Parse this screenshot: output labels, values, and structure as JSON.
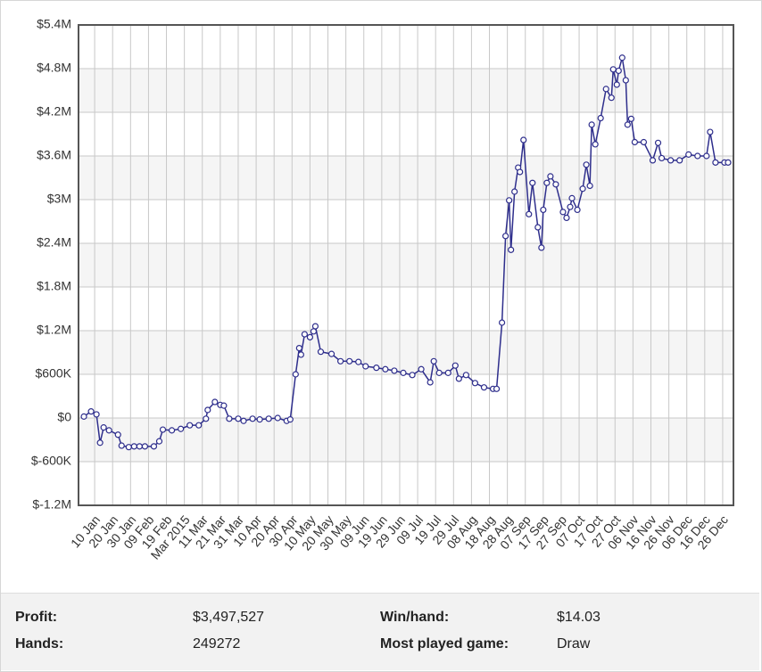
{
  "chart_data": {
    "type": "line",
    "ylim": [
      -1200000,
      5400000
    ],
    "yticks": [
      {
        "value": -1200000,
        "label": "$-1.2M"
      },
      {
        "value": -600000,
        "label": "$-600K"
      },
      {
        "value": 0,
        "label": "$0"
      },
      {
        "value": 600000,
        "label": "$600K"
      },
      {
        "value": 1200000,
        "label": "$1.2M"
      },
      {
        "value": 1800000,
        "label": "$1.8M"
      },
      {
        "value": 2400000,
        "label": "$2.4M"
      },
      {
        "value": 3000000,
        "label": "$3M"
      },
      {
        "value": 3600000,
        "label": "$3.6M"
      },
      {
        "value": 4200000,
        "label": "$4.2M"
      },
      {
        "value": 4800000,
        "label": "$4.8M"
      },
      {
        "value": 5400000,
        "label": "$5.4M"
      }
    ],
    "xlim": [
      "2015-01-01",
      "2016-01-01"
    ],
    "xticks": [
      {
        "value": "2015-01-10",
        "label": "10 Jan"
      },
      {
        "value": "2015-01-20",
        "label": "20 Jan"
      },
      {
        "value": "2015-01-30",
        "label": "30 Jan"
      },
      {
        "value": "2015-02-09",
        "label": "09 Feb"
      },
      {
        "value": "2015-02-19",
        "label": "19 Feb"
      },
      {
        "value": "2015-03-01",
        "label": "Mar 2015"
      },
      {
        "value": "2015-03-11",
        "label": "11 Mar"
      },
      {
        "value": "2015-03-21",
        "label": "21 Mar"
      },
      {
        "value": "2015-03-31",
        "label": "31 Mar"
      },
      {
        "value": "2015-04-10",
        "label": "10 Apr"
      },
      {
        "value": "2015-04-20",
        "label": "20 Apr"
      },
      {
        "value": "2015-04-30",
        "label": "30 Apr"
      },
      {
        "value": "2015-05-10",
        "label": "10 May"
      },
      {
        "value": "2015-05-20",
        "label": "20 May"
      },
      {
        "value": "2015-05-30",
        "label": "30 May"
      },
      {
        "value": "2015-06-09",
        "label": "09 Jun"
      },
      {
        "value": "2015-06-19",
        "label": "19 Jun"
      },
      {
        "value": "2015-06-29",
        "label": "29 Jun"
      },
      {
        "value": "2015-07-09",
        "label": "09 Jul"
      },
      {
        "value": "2015-07-19",
        "label": "19 Jul"
      },
      {
        "value": "2015-07-29",
        "label": "29 Jul"
      },
      {
        "value": "2015-08-08",
        "label": "08 Aug"
      },
      {
        "value": "2015-08-18",
        "label": "18 Aug"
      },
      {
        "value": "2015-08-28",
        "label": "28 Aug"
      },
      {
        "value": "2015-09-07",
        "label": "07 Sep"
      },
      {
        "value": "2015-09-17",
        "label": "17 Sep"
      },
      {
        "value": "2015-09-27",
        "label": "27 Sep"
      },
      {
        "value": "2015-10-07",
        "label": "07 Oct"
      },
      {
        "value": "2015-10-17",
        "label": "17 Oct"
      },
      {
        "value": "2015-10-27",
        "label": "27 Oct"
      },
      {
        "value": "2015-11-06",
        "label": "06 Nov"
      },
      {
        "value": "2015-11-16",
        "label": "16 Nov"
      },
      {
        "value": "2015-11-26",
        "label": "26 Nov"
      },
      {
        "value": "2015-12-06",
        "label": "06 Dec"
      },
      {
        "value": "2015-12-16",
        "label": "16 Dec"
      },
      {
        "value": "2015-12-26",
        "label": "26 Dec"
      }
    ],
    "grid": true,
    "x": [
      "2015-01-04",
      "2015-01-08",
      "2015-01-11",
      "2015-01-13",
      "2015-01-15",
      "2015-01-18",
      "2015-01-23",
      "2015-01-25",
      "2015-01-29",
      "2015-02-01",
      "2015-02-04",
      "2015-02-07",
      "2015-02-12",
      "2015-02-15",
      "2015-02-17",
      "2015-02-22",
      "2015-02-27",
      "2015-03-04",
      "2015-03-09",
      "2015-03-13",
      "2015-03-14",
      "2015-03-18",
      "2015-03-21",
      "2015-03-23",
      "2015-03-26",
      "2015-03-31",
      "2015-04-03",
      "2015-04-08",
      "2015-04-12",
      "2015-04-17",
      "2015-04-22",
      "2015-04-27",
      "2015-04-29",
      "2015-05-02",
      "2015-05-04",
      "2015-05-05",
      "2015-05-07",
      "2015-05-10",
      "2015-05-12",
      "2015-05-13",
      "2015-05-16",
      "2015-05-22",
      "2015-05-27",
      "2015-06-01",
      "2015-06-06",
      "2015-06-10",
      "2015-06-16",
      "2015-06-21",
      "2015-06-26",
      "2015-07-01",
      "2015-07-06",
      "2015-07-11",
      "2015-07-16",
      "2015-07-18",
      "2015-07-21",
      "2015-07-26",
      "2015-07-30",
      "2015-08-01",
      "2015-08-05",
      "2015-08-10",
      "2015-08-15",
      "2015-08-20",
      "2015-08-22",
      "2015-08-25",
      "2015-08-27",
      "2015-08-29",
      "2015-08-30",
      "2015-09-01",
      "2015-09-03",
      "2015-09-04",
      "2015-09-06",
      "2015-09-09",
      "2015-09-11",
      "2015-09-14",
      "2015-09-16",
      "2015-09-17",
      "2015-09-19",
      "2015-09-21",
      "2015-09-24",
      "2015-09-28",
      "2015-09-30",
      "2015-10-02",
      "2015-10-03",
      "2015-10-06",
      "2015-10-09",
      "2015-10-11",
      "2015-10-13",
      "2015-10-14",
      "2015-10-16",
      "2015-10-19",
      "2015-10-22",
      "2015-10-25",
      "2015-10-26",
      "2015-10-28",
      "2015-10-29",
      "2015-10-31",
      "2015-11-02",
      "2015-11-03",
      "2015-11-05",
      "2015-11-07",
      "2015-11-12",
      "2015-11-17",
      "2015-11-20",
      "2015-11-22",
      "2015-11-27",
      "2015-12-02",
      "2015-12-07",
      "2015-12-12",
      "2015-12-17",
      "2015-12-19",
      "2015-12-22",
      "2015-12-27",
      "2015-12-29"
    ],
    "series": [
      {
        "color": "#2e2e8c",
        "values": [
          20000,
          90000,
          50000,
          -340000,
          -130000,
          -170000,
          -230000,
          -380000,
          -400000,
          -390000,
          -390000,
          -390000,
          -390000,
          -320000,
          -160000,
          -170000,
          -150000,
          -100000,
          -100000,
          -10000,
          110000,
          220000,
          180000,
          170000,
          -10000,
          -10000,
          -40000,
          -10000,
          -20000,
          -10000,
          0,
          -40000,
          -20000,
          600000,
          960000,
          870000,
          1150000,
          1110000,
          1190000,
          1260000,
          910000,
          880000,
          780000,
          780000,
          770000,
          710000,
          690000,
          670000,
          650000,
          620000,
          590000,
          670000,
          490000,
          780000,
          620000,
          620000,
          720000,
          540000,
          590000,
          480000,
          420000,
          400000,
          400000,
          1310000,
          2500000,
          2990000,
          2310000,
          3110000,
          3440000,
          3380000,
          3820000,
          2800000,
          3230000,
          2620000,
          2340000,
          2860000,
          3230000,
          3320000,
          3210000,
          2830000,
          2750000,
          2900000,
          3020000,
          2860000,
          3150000,
          3480000,
          3190000,
          4030000,
          3760000,
          4120000,
          4520000,
          4400000,
          4790000,
          4580000,
          4770000,
          4950000,
          4640000,
          4030000,
          4110000,
          3790000,
          3790000,
          3540000,
          3780000,
          3570000,
          3540000,
          3540000,
          3620000,
          3600000,
          3600000,
          3930000,
          3510000,
          3510000,
          3510000
        ]
      }
    ]
  },
  "stats": [
    {
      "label": "Profit:",
      "value": "$3,497,527"
    },
    {
      "label": "Win/hand:",
      "value": "$14.03"
    },
    {
      "label": "Hands:",
      "value": "249272"
    },
    {
      "label": "Most played game:",
      "value": "Draw"
    }
  ]
}
